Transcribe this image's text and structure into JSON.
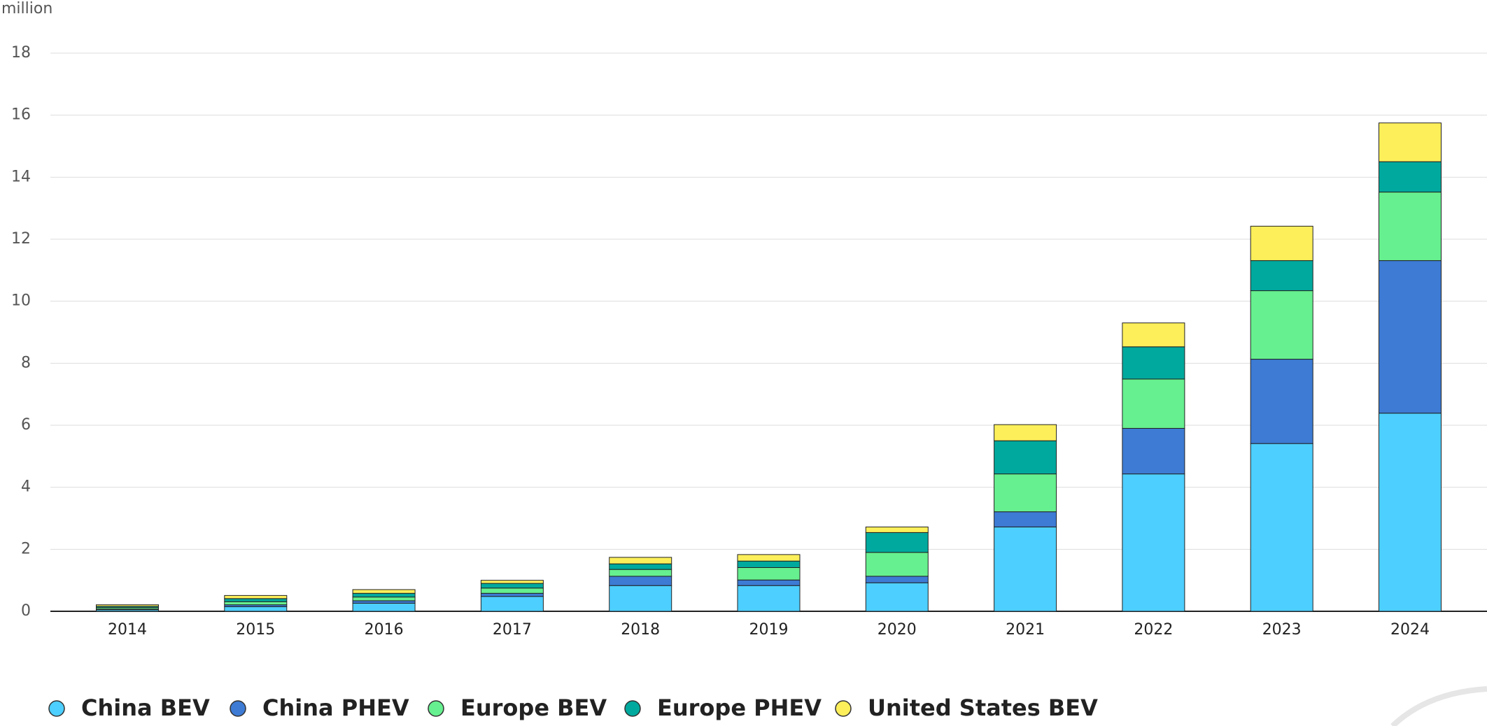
{
  "chart_data": {
    "type": "bar",
    "stacked": true,
    "y_label": "million",
    "categories": [
      "2014",
      "2015",
      "2016",
      "2017",
      "2018",
      "2019",
      "2020",
      "2021",
      "2022",
      "2023",
      "2024"
    ],
    "series": [
      {
        "name": "China BEV",
        "color": "#4dcfff",
        "values": [
          0.05,
          0.15,
          0.26,
          0.48,
          0.83,
          0.83,
          0.92,
          2.72,
          4.43,
          5.41,
          6.39
        ]
      },
      {
        "name": "China PHEV",
        "color": "#3d7bd4",
        "values": [
          0.02,
          0.06,
          0.08,
          0.1,
          0.3,
          0.18,
          0.21,
          0.49,
          1.47,
          2.72,
          4.92
        ]
      },
      {
        "name": "Europe BEV",
        "color": "#66f08f",
        "values": [
          0.05,
          0.1,
          0.12,
          0.17,
          0.22,
          0.4,
          0.77,
          1.22,
          1.59,
          2.21,
          2.21
        ]
      },
      {
        "name": "Europe PHEV",
        "color": "#00a99d",
        "values": [
          0.04,
          0.1,
          0.12,
          0.15,
          0.18,
          0.21,
          0.64,
          1.07,
          1.04,
          0.97,
          0.98
        ]
      },
      {
        "name": "United States BEV",
        "color": "#fcef5a",
        "values": [
          0.05,
          0.1,
          0.12,
          0.1,
          0.21,
          0.21,
          0.18,
          0.52,
          0.77,
          1.11,
          1.25
        ]
      }
    ],
    "ylim": [
      0,
      18
    ],
    "yticks": [
      0,
      2,
      4,
      6,
      8,
      10,
      12,
      14,
      16,
      18
    ],
    "grid": true,
    "legend": "bottom"
  }
}
